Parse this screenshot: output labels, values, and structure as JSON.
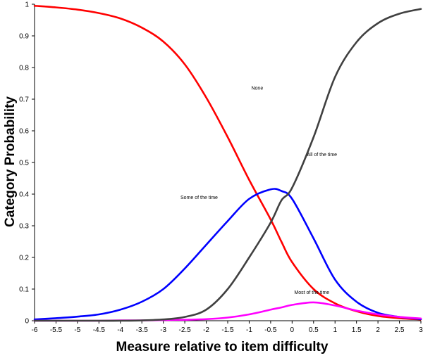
{
  "chart_data": {
    "type": "line",
    "title": "",
    "xlabel": "Measure relative to item difficulty",
    "ylabel": "Category  Probability",
    "xlim": [
      -6,
      3
    ],
    "ylim": [
      0,
      1
    ],
    "x_ticks": [
      -6,
      -5.5,
      -5,
      -4.5,
      -4,
      -3.5,
      -3,
      -2.5,
      -2,
      -1.5,
      -1,
      -0.5,
      0,
      0.5,
      1,
      1.5,
      2,
      2.5,
      3
    ],
    "x_tick_labels": [
      "-6",
      "-5.5",
      "-5",
      "-4.5",
      "-4",
      "-3.5",
      "-3",
      "-2.5",
      "-2",
      "-1.5",
      "-1",
      "-0.5",
      "0",
      "0.5",
      "1",
      "1.5",
      "2",
      "2.5",
      "3"
    ],
    "y_ticks": [
      0,
      0.1,
      0.2,
      0.3,
      0.4,
      0.5,
      0.6,
      0.7,
      0.8,
      0.9,
      1
    ],
    "y_tick_labels": [
      "0",
      "0.1",
      "0.2",
      "0.3",
      "0.4",
      "0.5",
      "0.6",
      "0.7",
      "0.8",
      "0.9",
      "1"
    ],
    "grid": false,
    "x": [
      -6,
      -5.5,
      -5,
      -4.5,
      -4,
      -3.5,
      -3,
      -2.5,
      -2,
      -1.5,
      -1,
      -0.5,
      -0.25,
      0,
      0.5,
      1,
      1.5,
      2,
      2.5,
      3
    ],
    "series": [
      {
        "name": "None",
        "color": "#ff0000",
        "values": [
          0.995,
          0.99,
          0.983,
          0.972,
          0.955,
          0.926,
          0.882,
          0.81,
          0.705,
          0.58,
          0.445,
          0.32,
          0.25,
          0.185,
          0.1,
          0.055,
          0.03,
          0.015,
          0.008,
          0.004
        ]
      },
      {
        "name": "Some of the time",
        "color": "#0000ff",
        "values": [
          0.004,
          0.008,
          0.013,
          0.02,
          0.035,
          0.06,
          0.1,
          0.165,
          0.24,
          0.315,
          0.385,
          0.415,
          0.41,
          0.385,
          0.26,
          0.13,
          0.06,
          0.025,
          0.012,
          0.005
        ]
      },
      {
        "name": "Most of the time",
        "color": "#ff00ff",
        "values": [
          0.0,
          0.0,
          0.0,
          0.0,
          0.001,
          0.001,
          0.002,
          0.003,
          0.005,
          0.01,
          0.02,
          0.035,
          0.042,
          0.05,
          0.058,
          0.048,
          0.032,
          0.02,
          0.012,
          0.007
        ]
      },
      {
        "name": "All of the time",
        "color": "#404040",
        "values": [
          0.0,
          0.0,
          0.0,
          0.0,
          0.0,
          0.001,
          0.004,
          0.012,
          0.035,
          0.1,
          0.2,
          0.31,
          0.38,
          0.42,
          0.58,
          0.77,
          0.88,
          0.94,
          0.97,
          0.985
        ]
      }
    ],
    "annotations": [
      {
        "text": "None",
        "x": -0.95,
        "y": 0.73
      },
      {
        "text": "All of the time",
        "x": 0.35,
        "y": 0.52
      },
      {
        "text": "Some of the time",
        "x": -2.6,
        "y": 0.385
      },
      {
        "text": "Most of the time",
        "x": 0.05,
        "y": 0.085
      }
    ]
  }
}
